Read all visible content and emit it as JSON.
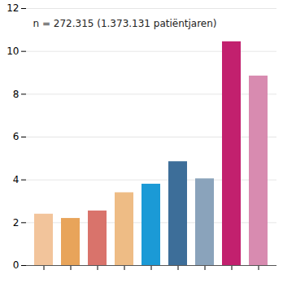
{
  "chart_data": {
    "type": "bar",
    "annotation": "n = 272.315 (1.373.131 patiëntjaren)",
    "categories": [
      null,
      null,
      null,
      null,
      null,
      null,
      null,
      null,
      null
    ],
    "values": [
      2.4,
      2.2,
      2.55,
      3.4,
      3.8,
      4.85,
      4.05,
      10.45,
      8.85
    ],
    "colors": [
      "#f2c49b",
      "#e8a45a",
      "#d9736b",
      "#eebc85",
      "#1b9ad6",
      "#3d6e99",
      "#8aa3bb",
      "#c2206e",
      "#d88bb0"
    ],
    "ylim": [
      0,
      12
    ],
    "yticks": [
      0,
      2,
      4,
      6,
      8,
      10,
      12
    ],
    "grid": true,
    "tick_labels": "y"
  }
}
